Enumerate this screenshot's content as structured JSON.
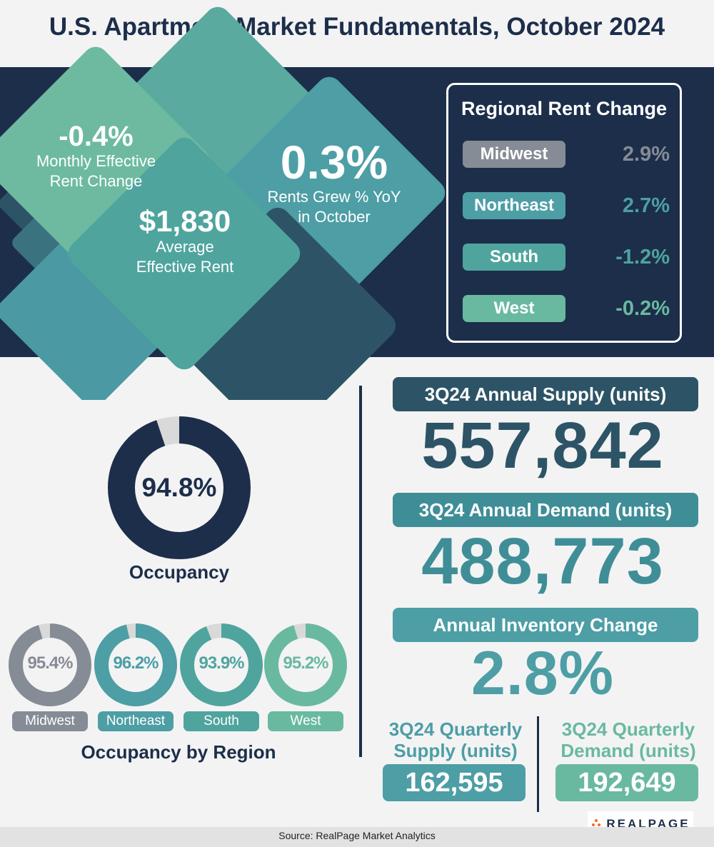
{
  "title": "U.S. Apartment Market Fundamentals, October 2024",
  "colors": {
    "navy": "#1c2e4a",
    "slate": "#2d5466",
    "teal_dark": "#3f8e97",
    "teal": "#4d9ea5",
    "seafoam": "#69b9a0",
    "gray": "#858c95",
    "light_gray": "#d9d9d9"
  },
  "headline_stats": {
    "monthly_change": {
      "value": "-0.4%",
      "label_line1": "Monthly Effective",
      "label_line2": "Rent Change"
    },
    "average_rent": {
      "value": "$1,830",
      "label_line1": "Average",
      "label_line2": "Effective Rent"
    },
    "yoy_growth": {
      "value": "0.3%",
      "label_line1": "Rents Grew % YoY",
      "label_line2": "in October"
    }
  },
  "regional_rent": {
    "title": "Regional Rent Change",
    "regions": [
      {
        "name": "Midwest",
        "value": "2.9%",
        "color": "#858c95"
      },
      {
        "name": "Northeast",
        "value": "2.7%",
        "color": "#4d9ea5"
      },
      {
        "name": "South",
        "value": "-1.2%",
        "color": "#4fa49e"
      },
      {
        "name": "West",
        "value": "-0.2%",
        "color": "#69b9a0"
      }
    ]
  },
  "chart_data": {
    "type": "pie",
    "occupancy": {
      "label": "Occupancy",
      "value": 94.8,
      "value_text": "94.8%"
    },
    "occupancy_by_region": {
      "title": "Occupancy by Region",
      "regions": [
        {
          "name": "Midwest",
          "value": 95.4,
          "value_text": "95.4%",
          "color": "#858c95"
        },
        {
          "name": "Northeast",
          "value": 96.2,
          "value_text": "96.2%",
          "color": "#4d9ea5"
        },
        {
          "name": "South",
          "value": 93.9,
          "value_text": "93.9%",
          "color": "#4fa49e"
        },
        {
          "name": "West",
          "value": 95.2,
          "value_text": "95.2%",
          "color": "#69b9a0"
        }
      ]
    }
  },
  "supply": {
    "label": "3Q24 Annual Supply (units)",
    "value": "557,842"
  },
  "demand": {
    "label": "3Q24 Annual Demand (units)",
    "value": "488,773"
  },
  "inventory": {
    "label": "Annual Inventory Change",
    "value": "2.8%"
  },
  "quarterly_supply": {
    "label_line1": "3Q24 Quarterly",
    "label_line2": "Supply (units)",
    "value": "162,595"
  },
  "quarterly_demand": {
    "label_line1": "3Q24 Quarterly",
    "label_line2": "Demand (units)",
    "value": "192,649"
  },
  "logo": {
    "text": "REALPAGE"
  },
  "footer": {
    "source": "Source: RealPage Market Analytics"
  }
}
